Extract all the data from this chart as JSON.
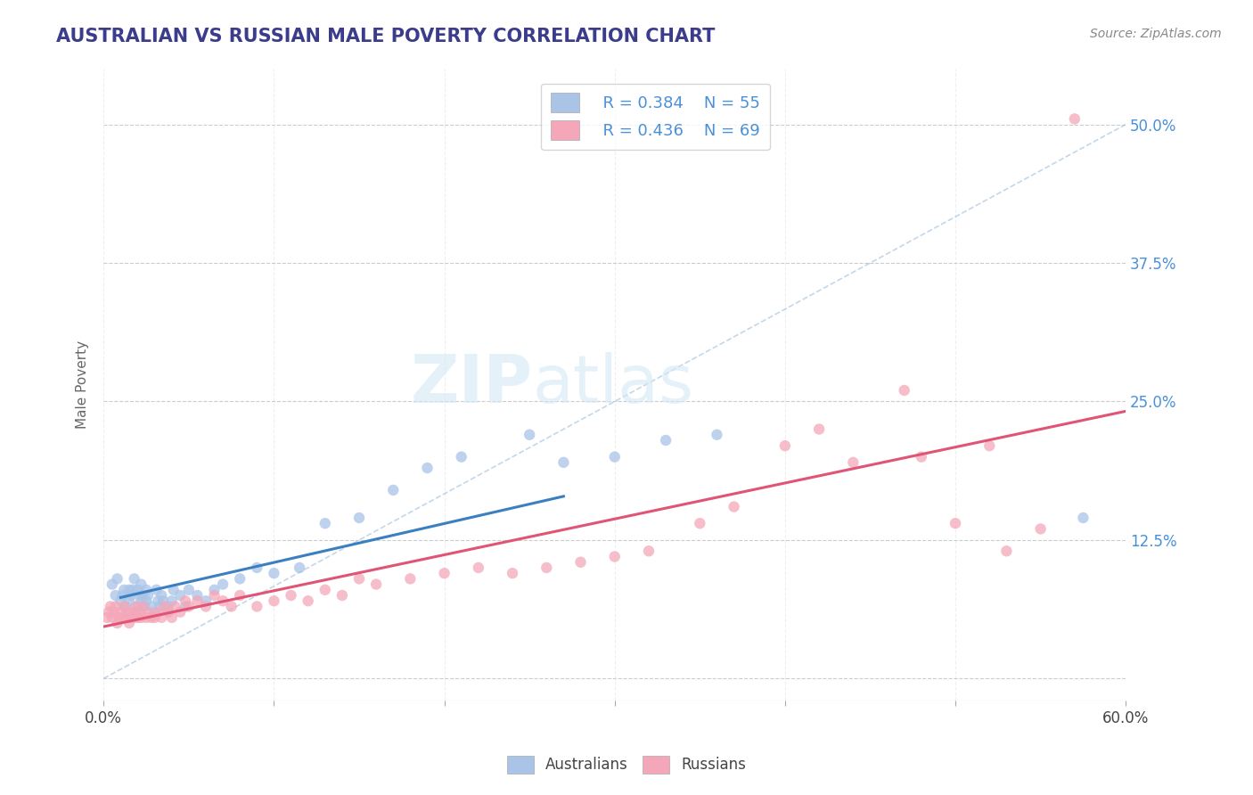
{
  "title": "AUSTRALIAN VS RUSSIAN MALE POVERTY CORRELATION CHART",
  "source": "Source: ZipAtlas.com",
  "xlabel": "",
  "ylabel": "Male Poverty",
  "xmin": 0.0,
  "xmax": 0.6,
  "ymin": -0.02,
  "ymax": 0.55,
  "yticks": [
    0.0,
    0.125,
    0.25,
    0.375,
    0.5
  ],
  "ytick_labels": [
    "",
    "12.5%",
    "25.0%",
    "37.5%",
    "50.0%"
  ],
  "xticks": [
    0.0,
    0.1,
    0.2,
    0.3,
    0.4,
    0.5,
    0.6
  ],
  "xtick_labels_show": [
    "0.0%",
    "",
    "",
    "",
    "",
    "",
    "60.0%"
  ],
  "legend_R_aus": "R = 0.384",
  "legend_N_aus": "N = 55",
  "legend_R_rus": "R = 0.436",
  "legend_N_rus": "N = 69",
  "color_aus": "#aac4e8",
  "color_rus": "#f4a7b9",
  "color_aus_line": "#3a7fc1",
  "color_rus_line": "#e05575",
  "color_diag": "#9bbdda",
  "color_title": "#3c3c8c",
  "color_axis_label": "#666666",
  "color_tick_right": "#4a90d9",
  "watermark_zip": "ZIP",
  "watermark_atlas": "atlas",
  "background_color": "#ffffff",
  "grid_color": "#cccccc",
  "aus_x": [
    0.005,
    0.007,
    0.008,
    0.01,
    0.011,
    0.012,
    0.013,
    0.015,
    0.015,
    0.016,
    0.017,
    0.018,
    0.019,
    0.02,
    0.02,
    0.021,
    0.022,
    0.022,
    0.023,
    0.024,
    0.025,
    0.025,
    0.026,
    0.028,
    0.03,
    0.031,
    0.032,
    0.033,
    0.034,
    0.035,
    0.038,
    0.04,
    0.041,
    0.045,
    0.048,
    0.05,
    0.055,
    0.06,
    0.065,
    0.07,
    0.08,
    0.09,
    0.1,
    0.115,
    0.13,
    0.15,
    0.17,
    0.19,
    0.21,
    0.25,
    0.27,
    0.3,
    0.33,
    0.36,
    0.575
  ],
  "aus_y": [
    0.085,
    0.075,
    0.09,
    0.07,
    0.075,
    0.08,
    0.065,
    0.07,
    0.08,
    0.075,
    0.08,
    0.09,
    0.06,
    0.065,
    0.08,
    0.075,
    0.07,
    0.085,
    0.075,
    0.065,
    0.07,
    0.08,
    0.075,
    0.065,
    0.06,
    0.08,
    0.07,
    0.065,
    0.075,
    0.07,
    0.065,
    0.07,
    0.08,
    0.075,
    0.065,
    0.08,
    0.075,
    0.07,
    0.08,
    0.085,
    0.09,
    0.1,
    0.095,
    0.1,
    0.14,
    0.145,
    0.17,
    0.19,
    0.2,
    0.22,
    0.195,
    0.2,
    0.215,
    0.22,
    0.145
  ],
  "rus_x": [
    0.002,
    0.003,
    0.004,
    0.005,
    0.006,
    0.007,
    0.008,
    0.009,
    0.01,
    0.011,
    0.012,
    0.013,
    0.014,
    0.015,
    0.016,
    0.017,
    0.018,
    0.019,
    0.02,
    0.021,
    0.022,
    0.023,
    0.025,
    0.026,
    0.028,
    0.03,
    0.032,
    0.034,
    0.036,
    0.038,
    0.04,
    0.042,
    0.045,
    0.048,
    0.05,
    0.055,
    0.06,
    0.065,
    0.07,
    0.075,
    0.08,
    0.09,
    0.1,
    0.11,
    0.12,
    0.13,
    0.14,
    0.15,
    0.16,
    0.18,
    0.2,
    0.22,
    0.24,
    0.26,
    0.28,
    0.3,
    0.32,
    0.35,
    0.37,
    0.4,
    0.42,
    0.44,
    0.47,
    0.48,
    0.5,
    0.52,
    0.53,
    0.55,
    0.57
  ],
  "rus_y": [
    0.055,
    0.06,
    0.065,
    0.055,
    0.06,
    0.065,
    0.05,
    0.055,
    0.06,
    0.055,
    0.065,
    0.055,
    0.06,
    0.05,
    0.055,
    0.06,
    0.055,
    0.065,
    0.055,
    0.06,
    0.055,
    0.065,
    0.055,
    0.06,
    0.055,
    0.055,
    0.06,
    0.055,
    0.065,
    0.06,
    0.055,
    0.065,
    0.06,
    0.07,
    0.065,
    0.07,
    0.065,
    0.075,
    0.07,
    0.065,
    0.075,
    0.065,
    0.07,
    0.075,
    0.07,
    0.08,
    0.075,
    0.09,
    0.085,
    0.09,
    0.095,
    0.1,
    0.095,
    0.1,
    0.105,
    0.11,
    0.115,
    0.14,
    0.155,
    0.21,
    0.225,
    0.195,
    0.26,
    0.2,
    0.14,
    0.21,
    0.115,
    0.135,
    0.505
  ]
}
